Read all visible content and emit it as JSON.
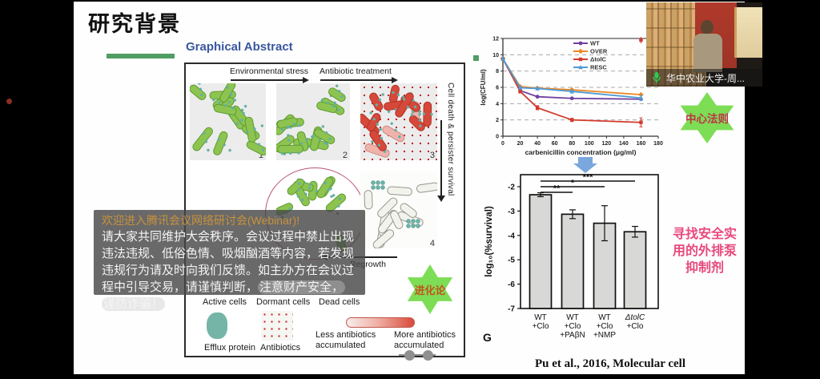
{
  "slide": {
    "title": "研究背景"
  },
  "abstract": {
    "heading": "Graphical Abstract",
    "env_stress": "Environmental stress",
    "antibiotic_treatment": "Antibiotic treatment",
    "cell_death_label": "Cell death & persister survival",
    "regrowth_label": "Regrowth",
    "panel_numbers": [
      "1",
      "2",
      "3",
      "4"
    ],
    "cell_type_labels": [
      "Active cells",
      "Dormant cells",
      "Dead cells"
    ],
    "efflux_label": "Efflux protein",
    "antibiotics_label": "Antibiotics",
    "less_label": "Less antibiotics\naccumulated",
    "more_label": "More antibiotics\naccumulated"
  },
  "annotations": {
    "central_dogma": "中心法则",
    "evolution": "进化论",
    "pink_note": "寻找安全实\n用的外排泵\n抑制剂",
    "citation": "Pu et al., 2016, Molecular cell"
  },
  "overlay": {
    "title": "欢迎进入腾讯会议网络研讨会(Webinar)!",
    "body_part1": "请大家共同维护大会秩序。会议过程中禁止出现违法违规、低俗色情、吸烟酗酒等内容，若发现违规行为请及时向我们反馈。如主办方在会议过程中引导交易，请谨慎判断，",
    "body_hl1": "注意财产安全，",
    "body_hl2": "谨防诈骗！"
  },
  "video": {
    "name_label": "华中农业大学-周..."
  },
  "colors": {
    "star_green": "#7ddd55",
    "pink_note": "#e8487c",
    "central_dogma_text": "#c13048",
    "evolution_text": "#c8501e",
    "heading_blue": "#3a57a0",
    "accent_green": "#4f9d63"
  },
  "chart_data": [
    {
      "type": "line",
      "title": "",
      "xlabel": "carbenicillin concentration (μg/ml)",
      "ylabel": "log(CFU/ml)",
      "xlim": [
        0,
        180
      ],
      "ylim": [
        0,
        12
      ],
      "xticks": [
        0,
        20,
        40,
        60,
        80,
        100,
        120,
        140,
        160,
        180
      ],
      "yticks": [
        0,
        2,
        4,
        6,
        8,
        10,
        12
      ],
      "grid": "dashed-horizontal",
      "legend_position": "top-right",
      "x": [
        0,
        20,
        40,
        80,
        160
      ],
      "series": [
        {
          "name": "WT",
          "color": "#7040a0",
          "marker": "circle",
          "values": [
            9.5,
            5.6,
            4.85,
            4.65,
            4.55
          ]
        },
        {
          "name": "OVER",
          "color": "#ee8722",
          "marker": "diamond",
          "values": [
            9.5,
            6.1,
            5.9,
            5.7,
            5.1
          ]
        },
        {
          "name": "ΔtolC",
          "color": "#d23b2e",
          "marker": "square",
          "values": [
            9.5,
            5.5,
            3.5,
            2.0,
            1.7
          ],
          "yerr": [
            0.2,
            0.2,
            0.25,
            0.2,
            0.55
          ]
        },
        {
          "name": "RESC",
          "color": "#4f9bd5",
          "marker": "triangle",
          "values": [
            9.5,
            5.95,
            5.85,
            5.5,
            4.7
          ],
          "yerr": [
            0.2,
            0.15,
            0.15,
            0.2,
            0.3
          ]
        }
      ],
      "outlier_point": {
        "x": 160,
        "y": 11.8,
        "yerr": 0.4,
        "color": "#d23b2e"
      }
    },
    {
      "type": "bar",
      "ylabel": "log₁₀(%survival)",
      "ylim": [
        -7,
        -2
      ],
      "yticks": [
        -2,
        -3,
        -4,
        -5,
        -6,
        -7
      ],
      "categories": [
        "WT\n+Clo",
        "WT\n+Clo\n+PAβN",
        "WT\n+Clo\n+NMP",
        "ΔtolC\n+Clo"
      ],
      "values": [
        -2.33,
        -3.13,
        -3.5,
        -3.85
      ],
      "errors": [
        0.08,
        0.18,
        0.72,
        0.22
      ],
      "bar_color": "#d8d8d6",
      "significance": [
        {
          "from": 0,
          "to": 1,
          "label": "**"
        },
        {
          "from": 0,
          "to": 2,
          "label": "*"
        },
        {
          "from": 0,
          "to": 3,
          "label": "***"
        }
      ],
      "panel_label": "G"
    }
  ]
}
